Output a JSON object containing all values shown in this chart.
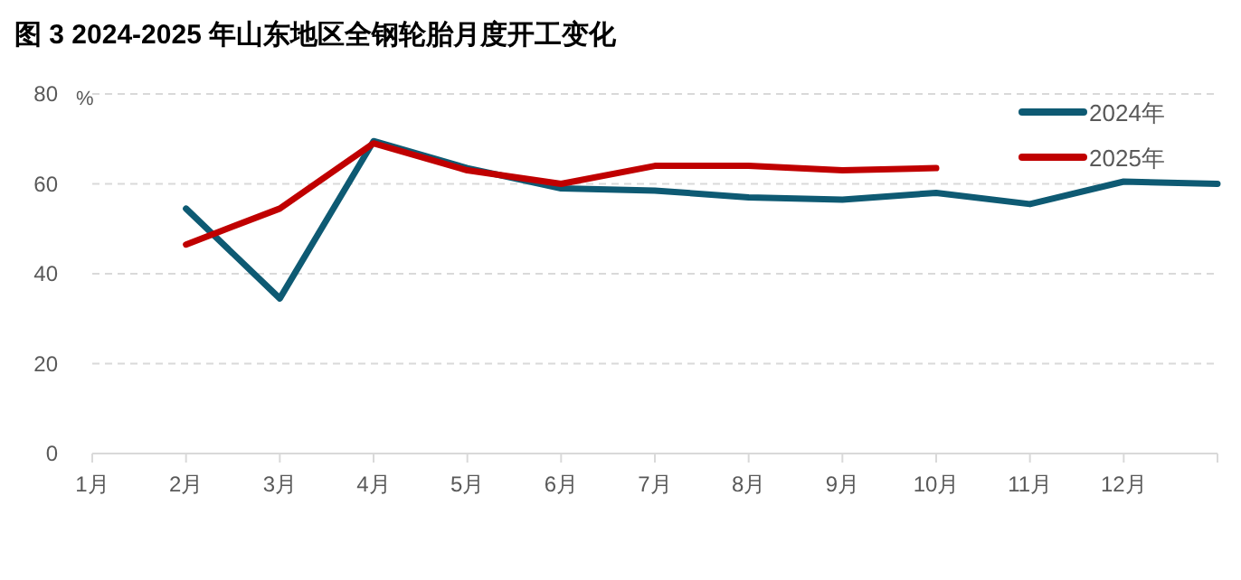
{
  "chart_data": {
    "type": "line",
    "title": "图 3 2024-2025 年山东地区全钢轮胎月度开工变化",
    "ylabel": "%",
    "categories": [
      "1月",
      "2月",
      "3月",
      "4月",
      "5月",
      "6月",
      "7月",
      "8月",
      "9月",
      "10月",
      "11月",
      "12月",
      null
    ],
    "series": [
      {
        "name": "2024年",
        "color": "#0e5a73",
        "values": [
          null,
          54.5,
          34.5,
          69.5,
          63.5,
          59,
          58.5,
          57,
          56.5,
          58,
          55.5,
          60.5,
          60
        ]
      },
      {
        "name": "2025年",
        "color": "#c00000",
        "values": [
          null,
          46.5,
          54.5,
          69,
          63,
          60,
          64,
          64,
          63,
          63.5,
          null,
          null,
          null
        ]
      }
    ],
    "ylim": [
      0,
      80
    ],
    "yticks": [
      0,
      20,
      40,
      60,
      80
    ],
    "grid": "y",
    "legend": "top right",
    "marker": "none",
    "line_style": "solid"
  }
}
